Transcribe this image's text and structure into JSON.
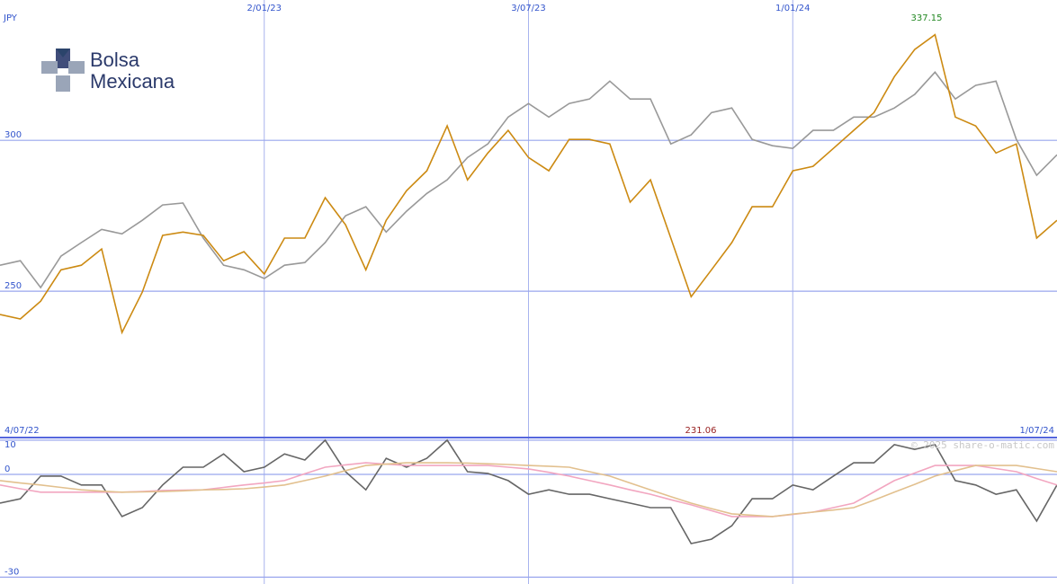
{
  "chart_data": [
    {
      "type": "line",
      "unit": "JPY",
      "logo": [
        "Bolsa",
        "Mexicana"
      ],
      "categories": [
        "4/07/22",
        null,
        null,
        null,
        null,
        null,
        null,
        null,
        null,
        null,
        null,
        null,
        null,
        "2/01/23",
        null,
        null,
        null,
        null,
        null,
        null,
        null,
        null,
        null,
        null,
        null,
        null,
        "3/07/23",
        null,
        null,
        null,
        null,
        null,
        null,
        null,
        null,
        null,
        null,
        null,
        null,
        "1/01/24",
        null,
        null,
        null,
        null,
        null,
        null,
        null,
        null,
        null,
        null,
        null,
        null,
        "1/07/24"
      ],
      "series": [
        {
          "color": "#999999",
          "values": [
            258.6,
            260.1,
            251.2,
            261.6,
            266.1,
            270.5,
            269,
            273.5,
            278.6,
            279.2,
            267.6,
            258.6,
            257.1,
            254.2,
            258.6,
            259.5,
            266.1,
            275,
            278,
            269.6,
            276.5,
            282.4,
            286.9,
            294.3,
            298.8,
            307.7,
            312.2,
            307.7,
            312.2,
            313.7,
            319.6,
            313.7,
            313.7,
            298.8,
            301.8,
            309.2,
            310.7,
            300.3,
            298.2,
            297.3,
            303.3,
            303.3,
            307.7,
            307.7,
            310.7,
            315.2,
            322.6,
            313.7,
            318.2,
            319.6,
            300.3,
            288.4,
            295.2
          ]
        },
        {
          "color": "#cc8a12",
          "values": [
            242.3,
            240.8,
            246.7,
            257.1,
            258.6,
            264,
            236.3,
            249.7,
            268.5,
            269.6,
            268.5,
            260.1,
            263.1,
            255.7,
            267.6,
            267.6,
            281,
            272,
            257.1,
            273.5,
            283.3,
            289.9,
            304.8,
            286.9,
            295.8,
            303.3,
            294.3,
            289.9,
            300.3,
            300.3,
            298.8,
            279.5,
            286.9,
            267.6,
            248.2,
            257.1,
            266.1,
            278,
            278,
            289.9,
            291.4,
            297.3,
            303.3,
            309.2,
            321.1,
            330.1,
            335,
            307.7,
            304.8,
            295.8,
            298.8,
            267.6,
            273.5
          ]
        }
      ],
      "ylim": [
        201.5,
        346.5
      ],
      "yticks": [
        250,
        300
      ],
      "grid": true,
      "annotations": [
        {
          "text": "337.15",
          "color": "#228822"
        },
        {
          "text": "231.06",
          "color": "#992222"
        }
      ]
    },
    {
      "type": "line",
      "watermark": "© 2025 share-o-matic.com",
      "series": [
        {
          "color": "#666666",
          "values": [
            -8.4,
            -7.1,
            -0.5,
            -0.5,
            -3.1,
            -3.1,
            -12.3,
            -9.7,
            -3.1,
            2.1,
            2.1,
            6,
            0.8,
            2.1,
            6,
            4.2,
            10,
            0.8,
            -4.5,
            4.7,
            2.1,
            4.7,
            10,
            0.8,
            0.3,
            -1.8,
            -5.8,
            -4.5,
            -5.8,
            -5.8,
            -7.1,
            -8.4,
            -9.7,
            -9.7,
            -20.2,
            -18.9,
            -15,
            -7.1,
            -7.1,
            -3.1,
            -4.5,
            -0.5,
            3.4,
            3.4,
            8.7,
            7.3,
            8.7,
            -1.8,
            -3.1,
            -5.8,
            -4.5,
            -13.6,
            -3.1
          ]
        },
        {
          "color": "#f2a6c0",
          "values": [
            -3.1,
            -4.2,
            -5.2,
            -5.2,
            -5.2,
            -5.2,
            -5.2,
            -5,
            -4.7,
            -4.6,
            -4.5,
            -3.8,
            -3.1,
            -2.5,
            -1.8,
            0.2,
            2.1,
            2.8,
            3.4,
            3,
            2.6,
            2.6,
            2.6,
            2.6,
            2.6,
            2.1,
            1.6,
            0.6,
            -0.5,
            -1.8,
            -3.1,
            -4.5,
            -5.8,
            -7.4,
            -8.9,
            -10.6,
            -12.3,
            -12.3,
            -12.3,
            -11.7,
            -11,
            -9.7,
            -8.4,
            -5.1,
            -1.8,
            0.4,
            2.6,
            2.6,
            2.6,
            1.7,
            0.8,
            -1.2,
            -3.1
          ]
        },
        {
          "color": "#e2c08e",
          "values": [
            -1.8,
            -2.5,
            -3.1,
            -3.8,
            -4.5,
            -4.9,
            -5.2,
            -5.1,
            -5,
            -4.8,
            -4.5,
            -4.4,
            -4.2,
            -3.7,
            -3.1,
            -1.8,
            -0.5,
            1.1,
            2.6,
            3,
            3.4,
            3.4,
            3.4,
            3.3,
            3.1,
            2.9,
            2.6,
            2.4,
            2.1,
            0.8,
            -0.5,
            -2.5,
            -4.5,
            -6.5,
            -8.4,
            -10,
            -11.5,
            -11.9,
            -12.3,
            -11.6,
            -11,
            -10.4,
            -9.7,
            -7.5,
            -5.2,
            -2.9,
            -0.5,
            1.1,
            2.6,
            2.6,
            2.6,
            1.7,
            0.8
          ]
        }
      ],
      "ylim": [
        -32,
        10.5
      ],
      "yticks": [
        -30,
        0,
        10
      ],
      "grid": true
    }
  ]
}
